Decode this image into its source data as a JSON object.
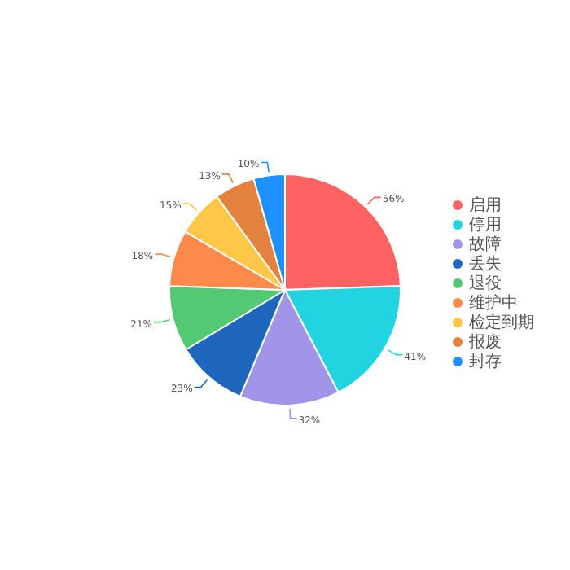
{
  "chart_data": {
    "type": "pie",
    "categories": [
      "启用",
      "停用",
      "故障",
      "丢失",
      "退役",
      "维护中",
      "检定到期",
      "报废",
      "封存"
    ],
    "values": [
      56,
      41,
      32,
      23,
      21,
      18,
      15,
      13,
      10
    ],
    "value_labels": [
      "56%",
      "41%",
      "32%",
      "23%",
      "21%",
      "18%",
      "15%",
      "13%",
      "10%"
    ],
    "colors": [
      "#fd6262",
      "#22d3e0",
      "#a095e8",
      "#1f67bc",
      "#52c972",
      "#fd8a4b",
      "#fec747",
      "#e2823e",
      "#1e90ff"
    ],
    "legend": "right"
  }
}
